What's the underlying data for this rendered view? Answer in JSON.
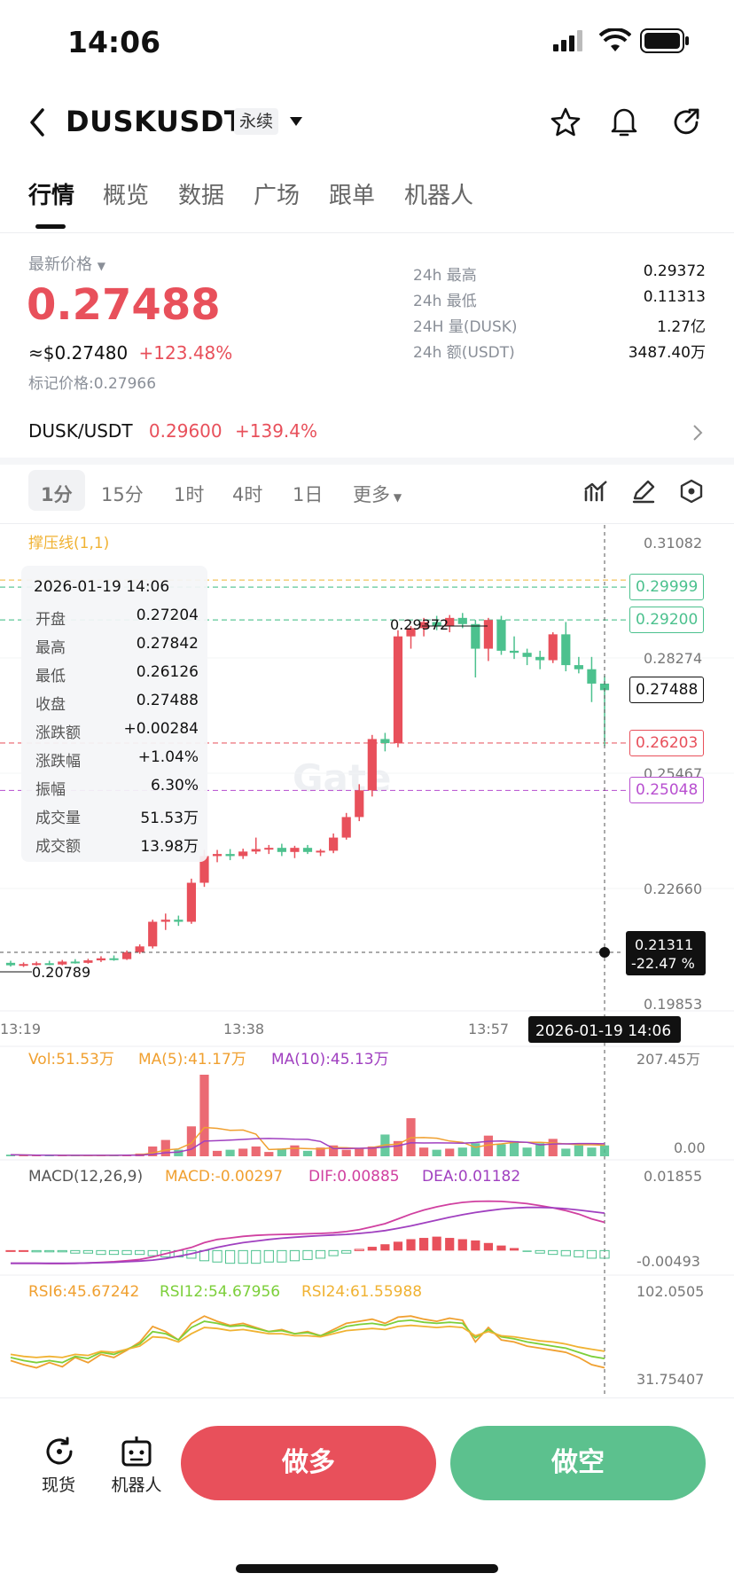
{
  "status_bar": {
    "time": "14:06"
  },
  "header": {
    "symbol": "DUSKUSDT",
    "contract_type": "永续",
    "icons": [
      "back-icon",
      "chevron-down-icon",
      "star-icon",
      "bell-icon",
      "share-icon"
    ]
  },
  "tabs": [
    {
      "label": "行情",
      "active": true
    },
    {
      "label": "概览"
    },
    {
      "label": "数据"
    },
    {
      "label": "广场"
    },
    {
      "label": "跟单"
    },
    {
      "label": "机器人"
    }
  ],
  "price": {
    "latest_label": "最新价格",
    "last": "0.27488",
    "usd_equiv": "≈$0.27480",
    "change_pct": "+123.48%",
    "mark_label": "标记价格:",
    "mark_price": "0.27966"
  },
  "stats": [
    {
      "label": "24h 最高",
      "value": "0.29372"
    },
    {
      "label": "24h 最低",
      "value": "0.11313"
    },
    {
      "label": "24H 量(DUSK)",
      "value": "1.27亿"
    },
    {
      "label": "24h 额(USDT)",
      "value": "3487.40万"
    }
  ],
  "spot": {
    "pair": "DUSK/USDT",
    "price": "0.29600",
    "change": "+139.4%"
  },
  "intervals": [
    "1分",
    "15分",
    "1时",
    "4时",
    "1日",
    "更多"
  ],
  "active_interval": "1分",
  "chart": {
    "indicator_label": "撑压线(1,1)",
    "y_axis": [
      "0.31082",
      "0.28274",
      "0.25467",
      "0.22660",
      "0.19853"
    ],
    "x_axis": [
      "13:19",
      "13:38",
      "13:57"
    ],
    "crosshair_time": "2026-01-19 14:06",
    "crosshair_price": "0.21311",
    "crosshair_pct": "-22.47 %",
    "high_marker": "0.29372",
    "low_marker": "0.20789",
    "levels": [
      {
        "price": "0.29999",
        "color": "#4cc18e"
      },
      {
        "price": "0.29200",
        "color": "#4cc18e"
      },
      {
        "price": "0.27488",
        "color": "#111111"
      },
      {
        "price": "0.26203",
        "color": "#e8505b"
      },
      {
        "price": "0.25048",
        "color": "#b84fd0"
      }
    ],
    "watermark": "Gate"
  },
  "tooltip": {
    "datetime": "2026-01-19 14:06",
    "rows": [
      {
        "k": "开盘",
        "v": "0.27204"
      },
      {
        "k": "最高",
        "v": "0.27842"
      },
      {
        "k": "最低",
        "v": "0.26126"
      },
      {
        "k": "收盘",
        "v": "0.27488"
      },
      {
        "k": "涨跌额",
        "v": "+0.00284"
      },
      {
        "k": "涨跌幅",
        "v": "+1.04%"
      },
      {
        "k": "振幅",
        "v": "6.30%"
      },
      {
        "k": "成交量",
        "v": "51.53万"
      },
      {
        "k": "成交额",
        "v": "13.98万"
      }
    ]
  },
  "volume": {
    "vol": "Vol:51.53万",
    "ma5": "MA(5):41.17万",
    "ma10": "MA(10):45.13万",
    "max": "207.45万",
    "min": "0.00"
  },
  "macd": {
    "title": "MACD(12,26,9)",
    "macd": "MACD:-0.00297",
    "dif": "DIF:0.00885",
    "dea": "DEA:0.01182",
    "max": "0.01855",
    "min": "-0.00493"
  },
  "rsi": {
    "rsi6": "RSI6:45.67242",
    "rsi12": "RSI12:54.67956",
    "rsi24": "RSI24:61.55988",
    "max": "102.0505",
    "min": "31.75407"
  },
  "bottom": {
    "spot_label": "现货",
    "robot_label": "机器人",
    "long_label": "做多",
    "short_label": "做空"
  },
  "colors": {
    "up": "#4cc18e",
    "down": "#e8505b",
    "accent": "#f0b232"
  },
  "candles": [
    {
      "o": 0.2085,
      "h": 0.209,
      "l": 0.2076,
      "c": 0.2079
    },
    {
      "o": 0.2079,
      "h": 0.2086,
      "l": 0.2075,
      "c": 0.2082
    },
    {
      "o": 0.2082,
      "h": 0.2088,
      "l": 0.2078,
      "c": 0.2084
    },
    {
      "o": 0.2084,
      "h": 0.209,
      "l": 0.2079,
      "c": 0.2081
    },
    {
      "o": 0.2081,
      "h": 0.2092,
      "l": 0.2079,
      "c": 0.2088
    },
    {
      "o": 0.2088,
      "h": 0.2094,
      "l": 0.2083,
      "c": 0.2085
    },
    {
      "o": 0.2085,
      "h": 0.2095,
      "l": 0.2083,
      "c": 0.2091
    },
    {
      "o": 0.2091,
      "h": 0.2101,
      "l": 0.2087,
      "c": 0.2096
    },
    {
      "o": 0.2096,
      "h": 0.2103,
      "l": 0.209,
      "c": 0.2094
    },
    {
      "o": 0.2094,
      "h": 0.2115,
      "l": 0.2092,
      "c": 0.2111
    },
    {
      "o": 0.2111,
      "h": 0.213,
      "l": 0.2107,
      "c": 0.2125
    },
    {
      "o": 0.2125,
      "h": 0.219,
      "l": 0.212,
      "c": 0.2185
    },
    {
      "o": 0.2185,
      "h": 0.2205,
      "l": 0.2165,
      "c": 0.219
    },
    {
      "o": 0.219,
      "h": 0.22,
      "l": 0.2175,
      "c": 0.2185
    },
    {
      "o": 0.2185,
      "h": 0.229,
      "l": 0.218,
      "c": 0.228
    },
    {
      "o": 0.228,
      "h": 0.236,
      "l": 0.227,
      "c": 0.2345
    },
    {
      "o": 0.2345,
      "h": 0.236,
      "l": 0.233,
      "c": 0.235
    },
    {
      "o": 0.235,
      "h": 0.2362,
      "l": 0.2335,
      "c": 0.2345
    },
    {
      "o": 0.2345,
      "h": 0.2363,
      "l": 0.2338,
      "c": 0.2356
    },
    {
      "o": 0.2356,
      "h": 0.239,
      "l": 0.235,
      "c": 0.2362
    },
    {
      "o": 0.2362,
      "h": 0.2372,
      "l": 0.235,
      "c": 0.2365
    },
    {
      "o": 0.2365,
      "h": 0.2375,
      "l": 0.2345,
      "c": 0.2355
    },
    {
      "o": 0.2355,
      "h": 0.237,
      "l": 0.234,
      "c": 0.2365
    },
    {
      "o": 0.2365,
      "h": 0.2372,
      "l": 0.235,
      "c": 0.2355
    },
    {
      "o": 0.2355,
      "h": 0.2362,
      "l": 0.2345,
      "c": 0.2358
    },
    {
      "o": 0.2358,
      "h": 0.24,
      "l": 0.2352,
      "c": 0.239
    },
    {
      "o": 0.239,
      "h": 0.245,
      "l": 0.2385,
      "c": 0.244
    },
    {
      "o": 0.244,
      "h": 0.252,
      "l": 0.243,
      "c": 0.2505
    },
    {
      "o": 0.2505,
      "h": 0.264,
      "l": 0.249,
      "c": 0.263
    },
    {
      "o": 0.263,
      "h": 0.2645,
      "l": 0.26,
      "c": 0.262
    },
    {
      "o": 0.262,
      "h": 0.2895,
      "l": 0.261,
      "c": 0.288
    },
    {
      "o": 0.288,
      "h": 0.2905,
      "l": 0.285,
      "c": 0.29
    },
    {
      "o": 0.29,
      "h": 0.2925,
      "l": 0.288,
      "c": 0.2915
    },
    {
      "o": 0.2915,
      "h": 0.293,
      "l": 0.2895,
      "c": 0.2905
    },
    {
      "o": 0.2905,
      "h": 0.2932,
      "l": 0.289,
      "c": 0.2925
    },
    {
      "o": 0.2925,
      "h": 0.2937,
      "l": 0.29,
      "c": 0.291
    },
    {
      "o": 0.291,
      "h": 0.292,
      "l": 0.278,
      "c": 0.285
    },
    {
      "o": 0.285,
      "h": 0.2925,
      "l": 0.282,
      "c": 0.292
    },
    {
      "o": 0.292,
      "h": 0.293,
      "l": 0.2835,
      "c": 0.2845
    },
    {
      "o": 0.2845,
      "h": 0.288,
      "l": 0.2825,
      "c": 0.284
    },
    {
      "o": 0.284,
      "h": 0.285,
      "l": 0.281,
      "c": 0.283
    },
    {
      "o": 0.283,
      "h": 0.2845,
      "l": 0.28,
      "c": 0.2822
    },
    {
      "o": 0.2822,
      "h": 0.289,
      "l": 0.2815,
      "c": 0.2885
    },
    {
      "o": 0.2885,
      "h": 0.2915,
      "l": 0.2795,
      "c": 0.281
    },
    {
      "o": 0.281,
      "h": 0.283,
      "l": 0.279,
      "c": 0.28
    },
    {
      "o": 0.28,
      "h": 0.283,
      "l": 0.272,
      "c": 0.2765
    },
    {
      "o": 0.2765,
      "h": 0.2784,
      "l": 0.2613,
      "c": 0.2749
    }
  ],
  "volumes": [
    3,
    2,
    1,
    2,
    1,
    2,
    1,
    2,
    2,
    3,
    5,
    18,
    30,
    12,
    55,
    150,
    10,
    12,
    14,
    18,
    8,
    14,
    20,
    10,
    16,
    20,
    12,
    14,
    18,
    40,
    28,
    70,
    16,
    12,
    14,
    16,
    24,
    38,
    22,
    28,
    16,
    24,
    32,
    14,
    20,
    16,
    20
  ],
  "macd_hist": [
    0,
    0,
    -1,
    -1,
    -1,
    -2,
    -2,
    -3,
    -3,
    -3,
    -3,
    -4,
    -5,
    -5,
    -6,
    -8,
    -9,
    -10,
    -10,
    -10,
    -9,
    -9,
    -8,
    -7,
    -6,
    -4,
    -2,
    1,
    3,
    5,
    7,
    9,
    10,
    11,
    10,
    9,
    8,
    6,
    4,
    2,
    -1,
    -2,
    -3,
    -4,
    -5,
    -6,
    -6
  ],
  "macd_dif": [
    -0.004,
    -0.004,
    -0.004,
    -0.0041,
    -0.0041,
    -0.004,
    -0.0039,
    -0.0037,
    -0.0035,
    -0.0032,
    -0.0028,
    -0.002,
    -0.001,
    0.0,
    0.001,
    0.0025,
    0.0035,
    0.004,
    0.0045,
    0.0048,
    0.005,
    0.0051,
    0.0052,
    0.0053,
    0.0054,
    0.0056,
    0.006,
    0.0066,
    0.0075,
    0.0085,
    0.01,
    0.0115,
    0.0128,
    0.0138,
    0.0146,
    0.0152,
    0.0155,
    0.0156,
    0.0155,
    0.0152,
    0.0148,
    0.0142,
    0.0135,
    0.0126,
    0.0115,
    0.01,
    0.0089
  ],
  "macd_dea": [
    -0.004,
    -0.004,
    -0.004,
    -0.004,
    -0.004,
    -0.004,
    -0.0039,
    -0.0038,
    -0.0037,
    -0.0035,
    -0.0033,
    -0.003,
    -0.0025,
    -0.0018,
    -0.001,
    0.0,
    0.001,
    0.0018,
    0.0025,
    0.003,
    0.0035,
    0.0039,
    0.0042,
    0.0045,
    0.0047,
    0.0049,
    0.0051,
    0.0054,
    0.0058,
    0.0063,
    0.007,
    0.0078,
    0.0087,
    0.0096,
    0.0105,
    0.0113,
    0.012,
    0.0126,
    0.0131,
    0.0134,
    0.0136,
    0.0136,
    0.0135,
    0.0132,
    0.0128,
    0.0123,
    0.0118
  ],
  "rsi6_vals": [
    52,
    48,
    45,
    50,
    46,
    55,
    50,
    58,
    55,
    62,
    70,
    85,
    80,
    72,
    88,
    95,
    90,
    86,
    88,
    84,
    80,
    82,
    78,
    80,
    76,
    82,
    88,
    90,
    92,
    88,
    94,
    95,
    92,
    90,
    93,
    91,
    70,
    84,
    72,
    70,
    66,
    64,
    62,
    60,
    55,
    48,
    45
  ],
  "rsi12_vals": [
    55,
    52,
    50,
    52,
    50,
    56,
    54,
    60,
    58,
    63,
    68,
    80,
    78,
    72,
    84,
    90,
    88,
    85,
    86,
    83,
    80,
    81,
    78,
    79,
    76,
    80,
    85,
    87,
    88,
    86,
    90,
    91,
    89,
    88,
    89,
    88,
    74,
    82,
    75,
    73,
    70,
    68,
    66,
    64,
    60,
    56,
    54
  ],
  "rsi24_vals": [
    58,
    56,
    55,
    56,
    55,
    58,
    57,
    61,
    60,
    63,
    66,
    75,
    74,
    70,
    78,
    84,
    83,
    81,
    82,
    80,
    78,
    78,
    76,
    76,
    75,
    78,
    81,
    82,
    83,
    82,
    85,
    86,
    85,
    84,
    85,
    84,
    76,
    80,
    76,
    75,
    73,
    71,
    70,
    68,
    65,
    63,
    61
  ]
}
